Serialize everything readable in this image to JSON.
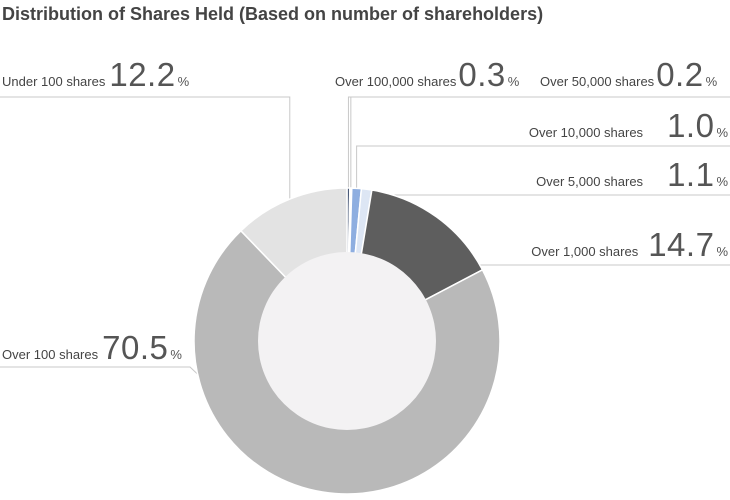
{
  "title": "Distribution of Shares Held (Based on number of shareholders)",
  "percent_sign": "%",
  "chart_data": {
    "type": "pie",
    "title": "Distribution of Shares Held (Based on number of shareholders)",
    "unit": "%",
    "slices": [
      {
        "label": "Over 100,000 shares",
        "value": 0.3,
        "value_text": "0.3",
        "color": "#4a5a78"
      },
      {
        "label": "Over 50,000 shares",
        "value": 0.2,
        "value_text": "0.2",
        "color": "#ffffff"
      },
      {
        "label": "Over 10,000 shares",
        "value": 1.0,
        "value_text": "1.0",
        "color": "#8eaee0"
      },
      {
        "label": "Over 5,000 shares",
        "value": 1.1,
        "value_text": "1.1",
        "color": "#dde6f4"
      },
      {
        "label": "Over 1,000 shares",
        "value": 14.7,
        "value_text": "14.7",
        "color": "#5e5e5e"
      },
      {
        "label": "Over 100 shares",
        "value": 70.5,
        "value_text": "70.5",
        "color": "#b9b9b9"
      },
      {
        "label": "Under 100 shares",
        "value": 12.2,
        "value_text": "12.2",
        "color": "#e3e3e3"
      }
    ],
    "inner_color": "#f3f2f3"
  }
}
